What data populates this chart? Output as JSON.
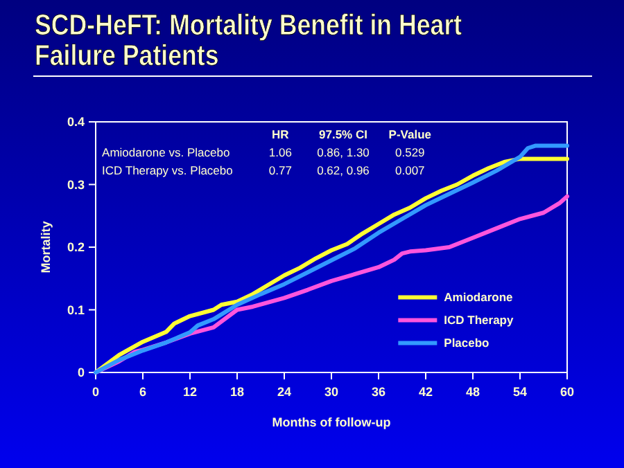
{
  "chart_data": {
    "type": "line",
    "title": "SCD-HeFT: Mortality Benefit in Heart Failure Patients",
    "xlabel": "Months of follow-up",
    "ylabel": "Mortality",
    "xlim": [
      0,
      60
    ],
    "xticks": [
      0,
      6,
      12,
      18,
      24,
      30,
      36,
      42,
      48,
      54,
      60
    ],
    "ylim": [
      0,
      0.4
    ],
    "yticks": [
      0,
      0.1,
      0.2,
      0.3,
      0.4
    ],
    "grid": false,
    "legend": "bottom right",
    "annotations": [
      "HR",
      "97.5% CI",
      "P-Value",
      "Amiodarone vs. Placebo",
      "1.06",
      "0.86, 1.30",
      "0.529",
      "ICD Therapy vs. Placebo",
      "0.77",
      "0.62, 0.96",
      "0.007"
    ],
    "series": [
      {
        "name": "Amiodarone",
        "color": "#ffff33",
        "x": [
          0,
          3,
          6,
          9,
          10,
          12,
          15,
          16,
          18,
          20,
          22,
          24,
          26,
          28,
          30,
          32,
          34,
          36,
          38,
          40,
          42,
          44,
          46,
          48,
          50,
          52,
          54,
          56,
          58,
          60
        ],
        "values": [
          0,
          0.028,
          0.049,
          0.065,
          0.078,
          0.09,
          0.1,
          0.108,
          0.113,
          0.125,
          0.14,
          0.155,
          0.167,
          0.182,
          0.195,
          0.205,
          0.222,
          0.237,
          0.252,
          0.263,
          0.278,
          0.29,
          0.3,
          0.314,
          0.326,
          0.336,
          0.341,
          0.341,
          0.341,
          0.341
        ]
      },
      {
        "name": "ICD Therapy",
        "color": "#ff55dd",
        "x": [
          0,
          3,
          5,
          6,
          9,
          12,
          15,
          18,
          20,
          24,
          27,
          30,
          33,
          36,
          38,
          39,
          40,
          42,
          45,
          48,
          51,
          54,
          57,
          59,
          60
        ],
        "values": [
          0,
          0.018,
          0.033,
          0.036,
          0.048,
          0.062,
          0.072,
          0.1,
          0.105,
          0.119,
          0.132,
          0.146,
          0.157,
          0.168,
          0.18,
          0.19,
          0.193,
          0.195,
          0.2,
          0.215,
          0.23,
          0.245,
          0.255,
          0.27,
          0.281
        ]
      },
      {
        "name": "Placebo",
        "color": "#3399ff",
        "x": [
          0,
          3,
          6,
          9,
          12,
          13,
          15,
          18,
          21,
          24,
          27,
          30,
          33,
          36,
          39,
          42,
          45,
          48,
          51,
          54,
          55,
          56,
          58,
          60
        ],
        "values": [
          0,
          0.02,
          0.035,
          0.048,
          0.064,
          0.075,
          0.085,
          0.108,
          0.125,
          0.141,
          0.16,
          0.179,
          0.198,
          0.223,
          0.245,
          0.267,
          0.285,
          0.303,
          0.322,
          0.344,
          0.358,
          0.362,
          0.362,
          0.362
        ]
      }
    ]
  }
}
